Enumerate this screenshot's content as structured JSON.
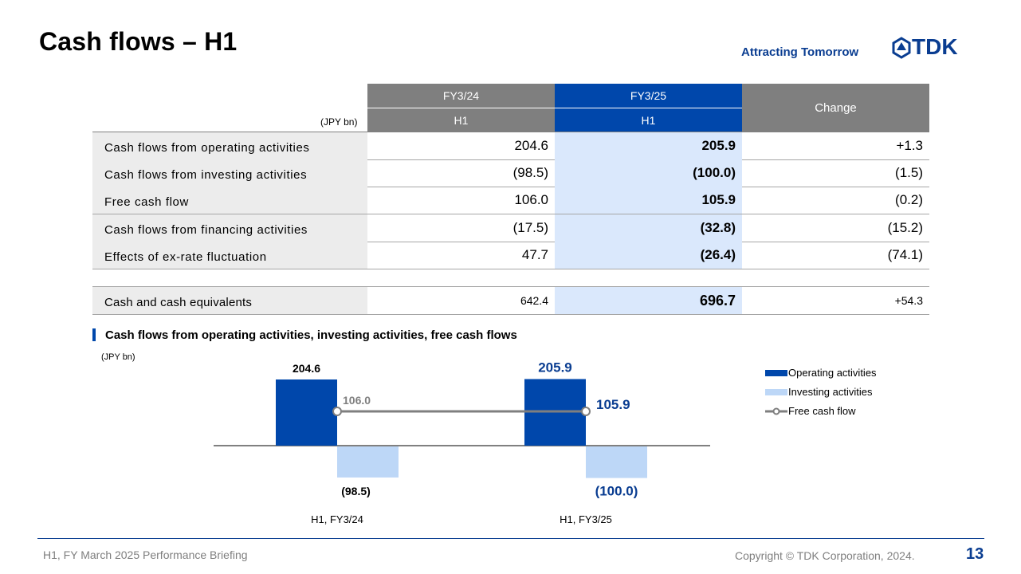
{
  "header": {
    "title": "Cash flows – H1",
    "tagline": "Attracting Tomorrow",
    "logo_text": "TDK"
  },
  "table": {
    "unit": "(JPY bn)",
    "col1_year": "FY3/24",
    "col1_period": "H1",
    "col2_year": "FY3/25",
    "col2_period": "H1",
    "col3": "Change",
    "rows": [
      {
        "label": "Cash flows from operating activities",
        "v1": "204.6",
        "v2": "205.9",
        "v3": "+1.3"
      },
      {
        "label": "Cash flows from investing activities",
        "v1": "(98.5)",
        "v2": "(100.0)",
        "v3": "(1.5)"
      },
      {
        "label": "Free cash flow",
        "v1": "106.0",
        "v2": "105.9",
        "v3": "(0.2)"
      },
      {
        "label": "Cash flows from financing activities",
        "v1": "(17.5)",
        "v2": "(32.8)",
        "v3": "(15.2)"
      },
      {
        "label": "Effects of ex-rate fluctuation",
        "v1": "47.7",
        "v2": "(26.4)",
        "v3": "(74.1)"
      }
    ],
    "cash_row": {
      "label": "Cash and cash equivalents",
      "v1": "642.4",
      "v2": "696.7",
      "v3": "+54.3"
    }
  },
  "chart_section": {
    "title": "Cash flows from operating activities, investing activities, free cash flows",
    "unit": "(JPY bn)"
  },
  "chart_data": {
    "type": "bar",
    "categories": [
      "H1, FY3/24",
      "H1, FY3/25"
    ],
    "series": [
      {
        "name": "Operating activities",
        "values": [
          204.6,
          205.9
        ],
        "color": "#0047ab",
        "labels": [
          "204.6",
          "205.9"
        ]
      },
      {
        "name": "Investing activities",
        "values": [
          -98.5,
          -100.0
        ],
        "color": "#bdd7f7",
        "labels": [
          "(98.5)",
          "(100.0)"
        ]
      },
      {
        "name": "Free cash flow",
        "type": "line",
        "values": [
          106.0,
          105.9
        ],
        "color": "#7f7f7f",
        "labels": [
          "106.0",
          "105.9"
        ]
      }
    ],
    "label_colors": [
      "#000000",
      "#0a3d91"
    ],
    "legend": "right"
  },
  "footer": {
    "left": "H1, FY March 2025 Performance Briefing",
    "copyright": "Copyright  © TDK Corporation, 2024.",
    "page": "13"
  }
}
